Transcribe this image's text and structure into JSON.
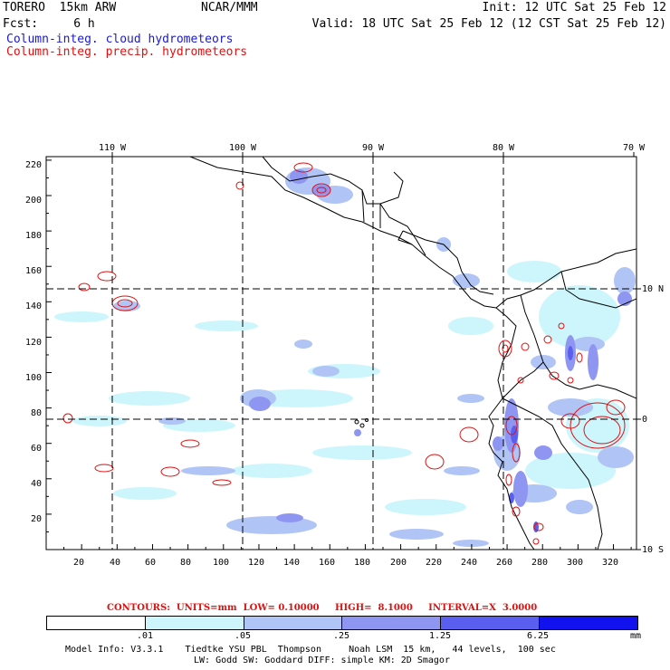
{
  "header": {
    "model": "TORERO  15km ARW",
    "org": "NCAR/MMM",
    "init": "Init: 12 UTC Sat 25 Feb 12",
    "forecast": "Fcst:     6 h",
    "valid": "Valid: 18 UTC Sat 25 Feb 12 (12 CST Sat 25 Feb 12)",
    "field_cloud": "Column-integ. cloud hydrometeors",
    "field_precip": "Column-integ. precip. hydrometeors"
  },
  "axes": {
    "lon_labels": [
      "110 W",
      "100 W",
      "90 W",
      "80 W",
      "70 W"
    ],
    "lat_labels": [
      "10 N",
      "0",
      "10 S"
    ],
    "y_ticks": [
      "220",
      "200",
      "180",
      "160",
      "140",
      "120",
      "100",
      "80",
      "60",
      "40",
      "20"
    ],
    "x_ticks": [
      "20",
      "40",
      "60",
      "80",
      "100",
      "120",
      "140",
      "160",
      "180",
      "200",
      "220",
      "240",
      "260",
      "280",
      "300",
      "320"
    ]
  },
  "contours": {
    "text": "CONTOURS:  UNITS=mm  LOW= 0.10000     HIGH=  8.1000     INTERVAL=X  3.0000"
  },
  "colorbar": {
    "labels": [
      ".01",
      ".05",
      ".25",
      "1.25",
      "6.25"
    ],
    "unit": "mm",
    "colors": [
      "#ffffff",
      "#ccf6fb",
      "#b0c4f5",
      "#8f96f2",
      "#5b5ff0",
      "#1212ee"
    ]
  },
  "footer": {
    "line1": "Model Info: V3.3.1    Tiedtke YSU PBL  Thompson     Noah LSM  15 km,   44 levels,  100 sec",
    "line2": "LW: Godd SW: Goddard DIFF: simple KM: 2D Smagor"
  }
}
